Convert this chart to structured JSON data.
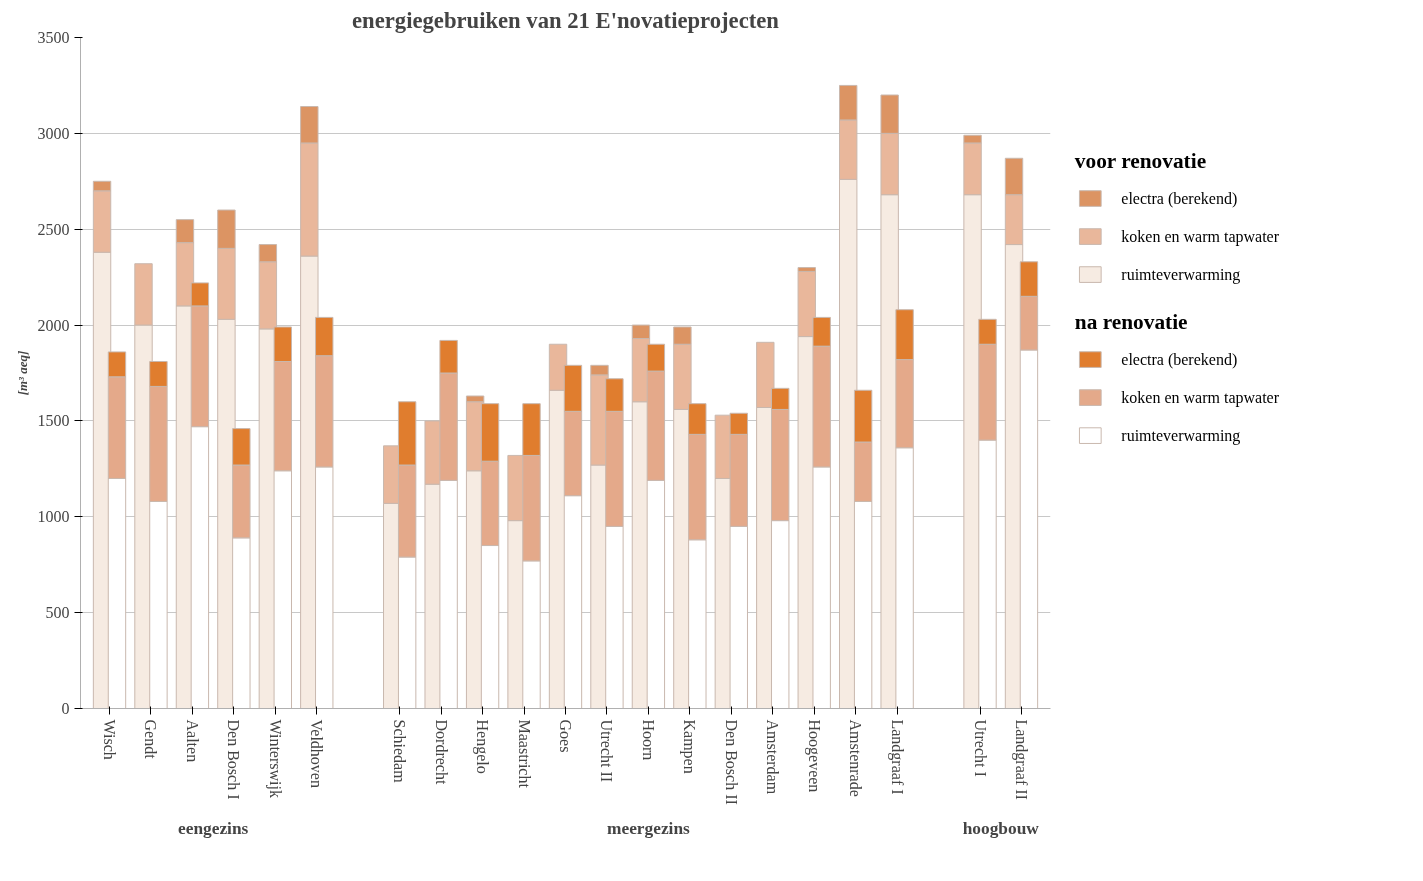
{
  "chart_data": {
    "type": "bar",
    "title": "energiegebruiken van 21 E'novatieprojecten",
    "ylabel": "[m³ aeq]",
    "categories": [
      "Wisch",
      "Gendt",
      "Aalten",
      "Den Bosch I",
      "Winterswijk",
      "Veldhoven",
      null,
      "Schiedam",
      "Dordrecht",
      "Hengelo",
      "Maastricht",
      "Goes",
      "Utrecht II",
      "Hoorn",
      "Kampen",
      "Den Bosch II",
      "Amsterdam",
      "Hoogeveen",
      "Amstenrade",
      "Landgraaf I",
      null,
      "Utrecht I",
      "Landgraaf II"
    ],
    "ylim": [
      0,
      3500
    ],
    "yticks": [
      0,
      500,
      1000,
      1500,
      2000,
      2500,
      3000,
      3500
    ],
    "grid": "y",
    "legend": "right",
    "annotations": [
      "voor renovatie",
      "na renovatie",
      "eengezins",
      "meergezins",
      "hoogbouw"
    ],
    "series": [
      {
        "name": "ruimteverwarming",
        "color": "#f6ebe2",
        "values": [
          2380,
          2000,
          2100,
          2030,
          1980,
          2360,
          null,
          1070,
          1170,
          1240,
          980,
          1660,
          1270,
          1600,
          1560,
          1200,
          1570,
          1940,
          2760,
          2680,
          null,
          2680,
          2420
        ],
        "base": [
          0,
          0,
          0,
          0,
          0,
          0,
          null,
          0,
          0,
          0,
          0,
          0,
          0,
          0,
          0,
          0,
          0,
          0,
          0,
          0,
          null,
          0,
          0
        ]
      },
      {
        "name": "koken en warm tapwater",
        "color": "#e9b79b",
        "values": [
          320,
          320,
          330,
          370,
          350,
          590,
          null,
          300,
          330,
          360,
          340,
          240,
          470,
          330,
          340,
          330,
          340,
          340,
          310,
          320,
          null,
          270,
          260
        ],
        "base": [
          2380,
          2000,
          2100,
          2030,
          1980,
          2360,
          null,
          1070,
          1170,
          1240,
          980,
          1660,
          1270,
          1600,
          1560,
          1200,
          1570,
          1940,
          2760,
          2680,
          null,
          2680,
          2420
        ]
      },
      {
        "name": "electra (berekend)",
        "color": "#dc9463",
        "values": [
          50,
          null,
          120,
          200,
          90,
          190,
          null,
          null,
          null,
          30,
          null,
          null,
          50,
          70,
          90,
          null,
          null,
          20,
          180,
          200,
          null,
          40,
          190
        ],
        "base": [
          2700,
          null,
          2430,
          2400,
          2330,
          2950,
          null,
          null,
          null,
          1600,
          null,
          null,
          1740,
          1930,
          1900,
          null,
          null,
          2280,
          3070,
          3000,
          null,
          2950,
          2680
        ]
      },
      {
        "name": "ruimteverwarming",
        "color": "#ffffff",
        "values": [
          1200,
          1080,
          1470,
          890,
          1240,
          1260,
          null,
          790,
          1190,
          850,
          770,
          1110,
          950,
          1190,
          880,
          950,
          980,
          1260,
          1080,
          1360,
          null,
          1400,
          1870
        ],
        "base": [
          0,
          0,
          0,
          0,
          0,
          0,
          null,
          0,
          0,
          0,
          0,
          0,
          0,
          0,
          0,
          0,
          0,
          0,
          0,
          0,
          null,
          0,
          0
        ]
      },
      {
        "name": "koken en warm tapwater",
        "color": "#e4a98a",
        "values": [
          530,
          600,
          630,
          380,
          570,
          580,
          null,
          480,
          560,
          440,
          550,
          440,
          600,
          570,
          550,
          480,
          580,
          630,
          310,
          460,
          null,
          500,
          280
        ],
        "base": [
          1200,
          1080,
          1470,
          890,
          1240,
          1260,
          null,
          790,
          1190,
          850,
          770,
          1110,
          950,
          1190,
          880,
          950,
          980,
          1260,
          1080,
          1360,
          null,
          1400,
          1870
        ]
      },
      {
        "name": "electra (berekend)",
        "color": "#e07d2e",
        "values": [
          130,
          130,
          120,
          190,
          180,
          200,
          null,
          330,
          170,
          300,
          270,
          240,
          170,
          140,
          160,
          110,
          110,
          150,
          270,
          260,
          null,
          130,
          180
        ],
        "base": [
          1730,
          1680,
          2100,
          1270,
          1810,
          1840,
          null,
          1270,
          1750,
          1290,
          1320,
          1550,
          1550,
          1760,
          1430,
          1430,
          1560,
          1890,
          1390,
          1820,
          null,
          1900,
          2150
        ]
      }
    ]
  }
}
